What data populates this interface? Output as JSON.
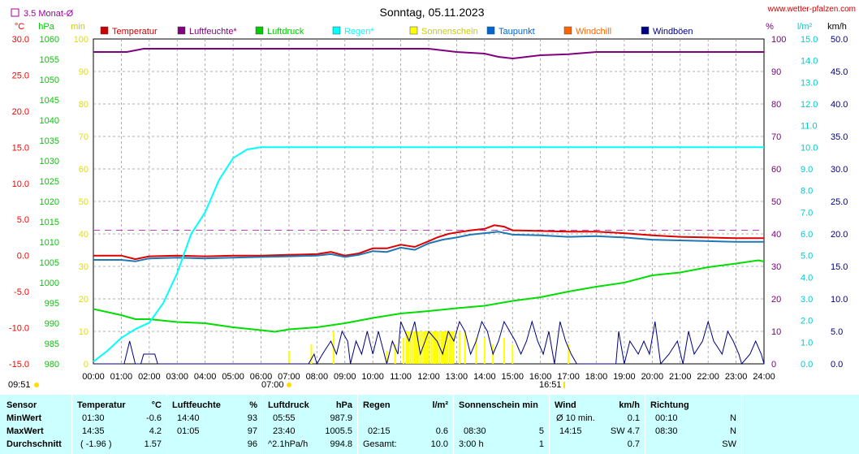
{
  "header": {
    "title": "Sonntag, 05.11.2023",
    "site": "www.wetter-pfalzen.com",
    "monat_label": "3.5 Monat-Ø"
  },
  "chart_data": {
    "type": "line",
    "title": "Sonntag, 05.11.2023",
    "x_ticks": [
      "00:00",
      "01:00",
      "02:00",
      "03:00",
      "04:00",
      "05:00",
      "06:00",
      "07:00",
      "08:00",
      "09:00",
      "10:00",
      "11:00",
      "12:00",
      "13:00",
      "14:00",
      "15:00",
      "16:00",
      "17:00",
      "18:00",
      "19:00",
      "20:00",
      "21:00",
      "22:00",
      "23:00",
      "24:00"
    ],
    "x_extra": {
      "sunrise": "07:00",
      "sunset": "16:51",
      "left_time": "09:51"
    },
    "axes": {
      "temp": {
        "unit": "°C",
        "range": [
          -15,
          30
        ],
        "ticks": [
          "30.0",
          "25.0",
          "20.0",
          "15.0",
          "10.0",
          "5.0",
          "0.0",
          "-5.0",
          "-10.0",
          "-15.0"
        ],
        "color": "#ff0000"
      },
      "pressure": {
        "unit": "hPa",
        "range": [
          980,
          1060
        ],
        "ticks": [
          "1060",
          "1055",
          "1050",
          "1045",
          "1040",
          "1035",
          "1030",
          "1025",
          "1020",
          "1015",
          "1010",
          "1005",
          "1000",
          "995",
          "990",
          "985",
          "980"
        ],
        "color": "#00cc00"
      },
      "minutes": {
        "unit": "min",
        "range": [
          0,
          100
        ],
        "ticks": [
          "100",
          "90",
          "80",
          "70",
          "60",
          "50",
          "40",
          "30",
          "20",
          "10",
          "0"
        ],
        "color": "#cccc00"
      },
      "humidity": {
        "unit": "%",
        "range": [
          0,
          100
        ],
        "ticks": [
          "100",
          "90",
          "80",
          "70",
          "60",
          "50",
          "40",
          "30",
          "20",
          "10",
          "0"
        ],
        "color": "#800080"
      },
      "rain": {
        "unit": "l/m²",
        "range": [
          0,
          15
        ],
        "ticks": [
          "15.0",
          "14.0",
          "13.0",
          "12.0",
          "11.0",
          "10.0",
          "9.0",
          "8.0",
          "7.0",
          "6.0",
          "5.0",
          "4.0",
          "3.0",
          "2.0",
          "1.0",
          "0.0"
        ],
        "color": "#00cccc"
      },
      "wind": {
        "unit": "km/h",
        "range": [
          0,
          50
        ],
        "ticks": [
          "50.0",
          "45.0",
          "40.0",
          "35.0",
          "30.0",
          "25.0",
          "20.0",
          "15.0",
          "10.0",
          "5.0",
          "0.0"
        ],
        "color": "#000080"
      }
    },
    "legend": [
      {
        "name": "Temperatur",
        "color": "#cc0000"
      },
      {
        "name": "Luftfeuchte*",
        "color": "#800080"
      },
      {
        "name": "Luftdruck",
        "color": "#00cc00"
      },
      {
        "name": "Regen*",
        "color": "#00ffff"
      },
      {
        "name": "Sonnenschein",
        "color": "#ffff00"
      },
      {
        "name": "Taupunkt",
        "color": "#0066cc"
      },
      {
        "name": "Windchill",
        "color": "#ff6600"
      },
      {
        "name": "Windböen",
        "color": "#000080"
      }
    ],
    "grid": true,
    "monat_avg_temp": 3.5,
    "series": [
      {
        "name": "Temperatur",
        "axis": "temp",
        "color": "#dd0000",
        "points": [
          [
            0,
            0
          ],
          [
            1,
            0
          ],
          [
            1.5,
            -0.5
          ],
          [
            2,
            -0.1
          ],
          [
            3,
            0
          ],
          [
            4,
            -0.1
          ],
          [
            5,
            0
          ],
          [
            6,
            0
          ],
          [
            7,
            0.1
          ],
          [
            8,
            0.2
          ],
          [
            8.5,
            0.5
          ],
          [
            9,
            0
          ],
          [
            9.5,
            0.3
          ],
          [
            10,
            1.0
          ],
          [
            10.5,
            1.0
          ],
          [
            11,
            1.5
          ],
          [
            11.5,
            1.2
          ],
          [
            12,
            2.0
          ],
          [
            12.3,
            2.5
          ],
          [
            12.7,
            3.0
          ],
          [
            13,
            3.2
          ],
          [
            13.5,
            3.5
          ],
          [
            14,
            3.7
          ],
          [
            14.35,
            4.2
          ],
          [
            14.7,
            4.0
          ],
          [
            15,
            3.5
          ],
          [
            16,
            3.4
          ],
          [
            17,
            3.3
          ],
          [
            18,
            3.3
          ],
          [
            19,
            3.1
          ],
          [
            20,
            2.8
          ],
          [
            21,
            2.6
          ],
          [
            22,
            2.5
          ],
          [
            23,
            2.4
          ],
          [
            24,
            2.4
          ]
        ]
      },
      {
        "name": "Taupunkt",
        "axis": "temp",
        "color": "#1f77b4",
        "points": [
          [
            0,
            -0.6
          ],
          [
            1,
            -0.6
          ],
          [
            1.5,
            -0.8
          ],
          [
            2,
            -0.4
          ],
          [
            3,
            -0.3
          ],
          [
            4,
            -0.4
          ],
          [
            5,
            -0.3
          ],
          [
            6,
            -0.2
          ],
          [
            7,
            -0.1
          ],
          [
            8,
            0
          ],
          [
            8.5,
            0.2
          ],
          [
            9,
            -0.2
          ],
          [
            9.5,
            0.1
          ],
          [
            10,
            0.6
          ],
          [
            10.5,
            0.5
          ],
          [
            11,
            1.1
          ],
          [
            11.5,
            0.8
          ],
          [
            12,
            1.7
          ],
          [
            12.5,
            2.2
          ],
          [
            13,
            2.5
          ],
          [
            13.5,
            2.9
          ],
          [
            14,
            3.1
          ],
          [
            14.5,
            3.3
          ],
          [
            15,
            2.9
          ],
          [
            16,
            2.8
          ],
          [
            17,
            2.6
          ],
          [
            18,
            2.7
          ],
          [
            19,
            2.5
          ],
          [
            20,
            2.2
          ],
          [
            21,
            2.1
          ],
          [
            22,
            2.0
          ],
          [
            23,
            1.9
          ],
          [
            24,
            1.9
          ]
        ]
      },
      {
        "name": "Luftfeuchte*",
        "axis": "humidity",
        "color": "#800080",
        "points": [
          [
            0,
            96
          ],
          [
            1.2,
            96
          ],
          [
            1.8,
            97
          ],
          [
            5,
            97
          ],
          [
            8,
            97
          ],
          [
            11,
            97
          ],
          [
            12,
            97
          ],
          [
            12.5,
            96.5
          ],
          [
            13,
            96
          ],
          [
            14,
            95.5
          ],
          [
            14.5,
            94.5
          ],
          [
            15,
            94
          ],
          [
            15.5,
            94.5
          ],
          [
            16,
            95
          ],
          [
            17,
            95.3
          ],
          [
            18,
            96
          ],
          [
            20,
            96
          ],
          [
            22,
            96
          ],
          [
            24,
            96
          ]
        ]
      },
      {
        "name": "Luftdruck",
        "axis": "pressure",
        "color": "#00dd00",
        "points": [
          [
            0,
            993.5
          ],
          [
            1,
            992
          ],
          [
            1.5,
            991
          ],
          [
            2,
            991
          ],
          [
            3,
            990.3
          ],
          [
            4,
            990
          ],
          [
            5,
            989
          ],
          [
            6,
            988.3
          ],
          [
            6.5,
            987.9
          ],
          [
            7,
            988.5
          ],
          [
            8,
            989
          ],
          [
            9,
            990
          ],
          [
            10,
            991.3
          ],
          [
            11,
            992.4
          ],
          [
            12,
            993
          ],
          [
            13,
            993.7
          ],
          [
            14,
            994.3
          ],
          [
            15,
            995.5
          ],
          [
            16,
            996.4
          ],
          [
            17,
            997.8
          ],
          [
            18,
            999
          ],
          [
            19,
            1000
          ],
          [
            20,
            1001.8
          ],
          [
            21,
            1002.5
          ],
          [
            22,
            1003.8
          ],
          [
            23,
            1004.7
          ],
          [
            23.8,
            1005.5
          ],
          [
            24,
            1005.2
          ]
        ]
      },
      {
        "name": "Regen*",
        "axis": "rain",
        "color": "#00ffff",
        "points": [
          [
            0,
            0.1
          ],
          [
            0.5,
            0.6
          ],
          [
            1,
            1.2
          ],
          [
            1.5,
            1.6
          ],
          [
            2,
            1.9
          ],
          [
            2.5,
            2.8
          ],
          [
            3,
            4.2
          ],
          [
            3.5,
            6.0
          ],
          [
            4,
            7.0
          ],
          [
            4.5,
            8.5
          ],
          [
            5,
            9.5
          ],
          [
            5.5,
            9.9
          ],
          [
            6,
            10.0
          ],
          [
            8,
            10.0
          ],
          [
            10,
            10.0
          ],
          [
            12,
            10.0
          ],
          [
            16,
            10.0
          ],
          [
            20,
            10.0
          ],
          [
            24,
            10.0
          ]
        ]
      },
      {
        "name": "Windböen",
        "axis": "wind",
        "color": "#000080",
        "points": [
          [
            0,
            0
          ],
          [
            1.1,
            0
          ],
          [
            1.3,
            3.5
          ],
          [
            1.5,
            0
          ],
          [
            1.7,
            0
          ],
          [
            1.8,
            1.5
          ],
          [
            2.2,
            1.5
          ],
          [
            2.3,
            0
          ],
          [
            7.7,
            0
          ],
          [
            7.9,
            1.5
          ],
          [
            8.0,
            0
          ],
          [
            8.2,
            1.5
          ],
          [
            8.5,
            3.5
          ],
          [
            8.7,
            1.5
          ],
          [
            8.9,
            5
          ],
          [
            9.1,
            3.5
          ],
          [
            9.2,
            0
          ],
          [
            9.4,
            3.5
          ],
          [
            9.6,
            1.5
          ],
          [
            9.8,
            5
          ],
          [
            10,
            1.5
          ],
          [
            10.2,
            5
          ],
          [
            10.5,
            0
          ],
          [
            10.7,
            3.5
          ],
          [
            10.9,
            1.5
          ],
          [
            11,
            6.5
          ],
          [
            11.3,
            3.5
          ],
          [
            11.5,
            6.5
          ],
          [
            11.7,
            1.5
          ],
          [
            12,
            5
          ],
          [
            12.3,
            3.5
          ],
          [
            12.5,
            1.5
          ],
          [
            12.7,
            5
          ],
          [
            12.9,
            3.5
          ],
          [
            13.1,
            6.5
          ],
          [
            13.3,
            5
          ],
          [
            13.5,
            1.5
          ],
          [
            13.7,
            3.5
          ],
          [
            13.9,
            6.5
          ],
          [
            14.1,
            5
          ],
          [
            14.3,
            1.5
          ],
          [
            14.5,
            3.5
          ],
          [
            14.7,
            6.5
          ],
          [
            14.9,
            5
          ],
          [
            15.1,
            3.5
          ],
          [
            15.3,
            1.5
          ],
          [
            15.5,
            3.5
          ],
          [
            15.7,
            6.5
          ],
          [
            15.9,
            3.5
          ],
          [
            16.1,
            1.5
          ],
          [
            16.3,
            5
          ],
          [
            16.5,
            0
          ],
          [
            16.7,
            6.5
          ],
          [
            16.9,
            3.5
          ],
          [
            17.1,
            1.5
          ],
          [
            17.3,
            0
          ],
          [
            18.7,
            0
          ],
          [
            18.8,
            5
          ],
          [
            19.0,
            0
          ],
          [
            19.2,
            3.5
          ],
          [
            19.5,
            1.5
          ],
          [
            19.7,
            3.5
          ],
          [
            19.9,
            1.5
          ],
          [
            20.1,
            6.5
          ],
          [
            20.3,
            0
          ],
          [
            20.6,
            1.5
          ],
          [
            20.9,
            3.5
          ],
          [
            21.1,
            0
          ],
          [
            21.3,
            5
          ],
          [
            21.5,
            1.5
          ],
          [
            21.8,
            3.5
          ],
          [
            22.0,
            6.5
          ],
          [
            22.2,
            3.5
          ],
          [
            22.5,
            1.5
          ],
          [
            22.7,
            5
          ],
          [
            22.9,
            3.5
          ],
          [
            23.1,
            1.5
          ],
          [
            23.2,
            0
          ],
          [
            23.5,
            1.5
          ],
          [
            23.7,
            3.5
          ],
          [
            23.9,
            1.5
          ],
          [
            24,
            0
          ]
        ]
      }
    ],
    "sunshine_bars": [
      [
        7.0,
        2
      ],
      [
        7.8,
        3
      ],
      [
        8.6,
        5
      ],
      [
        10.5,
        2
      ],
      [
        10.8,
        3
      ],
      [
        11.1,
        4
      ],
      [
        12.2,
        5
      ],
      [
        12.5,
        5
      ],
      [
        12.8,
        5
      ],
      [
        13.1,
        5
      ],
      [
        13.3,
        5
      ],
      [
        13.7,
        4
      ],
      [
        14.0,
        4
      ],
      [
        14.3,
        3
      ],
      [
        14.7,
        4
      ],
      [
        15.0,
        3
      ],
      [
        17.0,
        3
      ]
    ]
  },
  "stats": {
    "sensor": {
      "header": "Sensor",
      "rows": [
        "MinWert",
        "MaxWert",
        "Durchschnitt"
      ]
    },
    "temperatur": {
      "header": "Temperatur",
      "unit": "°C",
      "rows": [
        [
          "01:30",
          "-0.6"
        ],
        [
          "14:35",
          "4.2"
        ],
        [
          "( -1.96 )",
          "1.57"
        ]
      ]
    },
    "luftfeuchte": {
      "header": "Luftfeuchte",
      "unit": "%",
      "rows": [
        [
          "14:40",
          "93"
        ],
        [
          "01:05",
          "97"
        ],
        [
          "",
          "96"
        ]
      ]
    },
    "luftdruck": {
      "header": "Luftdruck",
      "unit": "hPa",
      "rows": [
        [
          "05:55",
          "987.9"
        ],
        [
          "23:40",
          "1005.5"
        ],
        [
          "^2.1hPa/h",
          "994.8"
        ]
      ]
    },
    "regen": {
      "header": "Regen",
      "unit": "l/m²",
      "rows": [
        [
          "",
          ""
        ],
        [
          "02:15",
          "0.6"
        ],
        [
          "Gesamt:",
          "10.0"
        ]
      ]
    },
    "sonne": {
      "header": "Sonnenschein min",
      "rows": [
        [
          "",
          ""
        ],
        [
          "08:30",
          "5"
        ],
        [
          "3:00 h",
          "1"
        ]
      ]
    },
    "wind": {
      "header": "Wind",
      "unit": "km/h",
      "rows": [
        [
          "Ø 10 min.",
          "0.1"
        ],
        [
          "14:15",
          "SW 4.7"
        ],
        [
          "",
          "0.7"
        ]
      ]
    },
    "richtung": {
      "header": "Richtung",
      "rows": [
        [
          "00:10",
          "N"
        ],
        [
          "08:30",
          "N"
        ],
        [
          "",
          "SW"
        ]
      ]
    }
  }
}
